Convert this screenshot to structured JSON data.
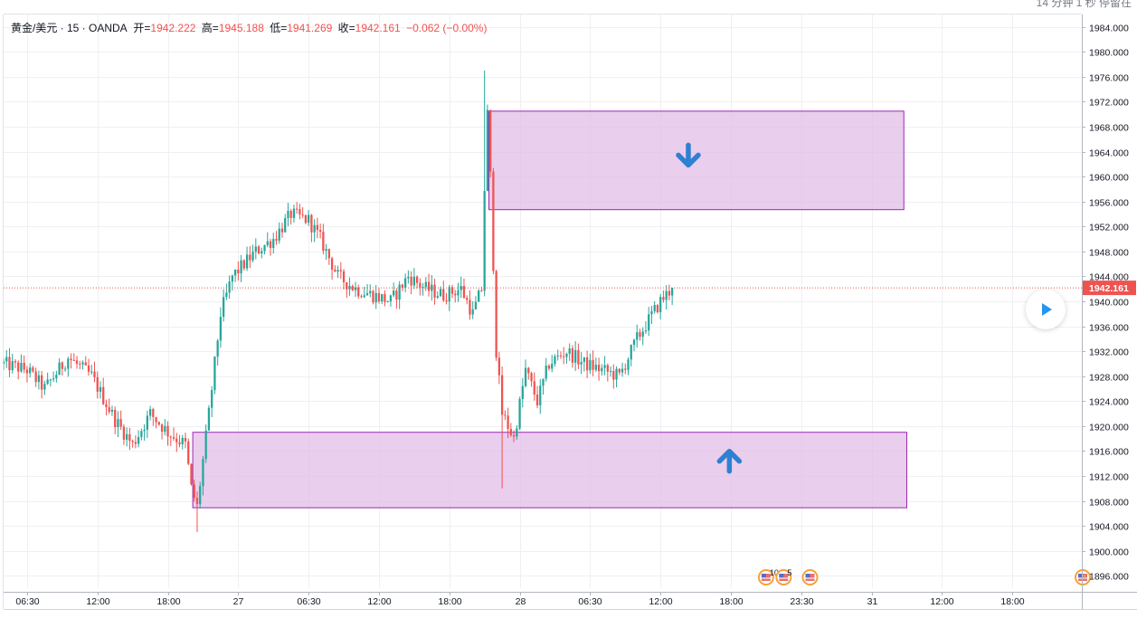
{
  "header": {
    "symbol": "黄金/美元 · 15 · OANDA",
    "open_label": "开=",
    "open_value": "1942.222",
    "high_label": "高=",
    "high_value": "1945.188",
    "low_label": "低=",
    "low_value": "1941.269",
    "close_label": "收=",
    "close_value": "1942.161",
    "change": "−0.062 (−0.00%)"
  },
  "topright_text": "14 分钟 1 秒 停留在",
  "colors": {
    "up": "#26a69a",
    "down": "#ef5350",
    "zone_fill": "#e1bee7",
    "zone_border": "#9c27b0",
    "arrow": "#2f80d1",
    "price_tag": "#ef5350"
  },
  "chart_data": {
    "type": "candlestick",
    "ylim": [
      1894,
      1986
    ],
    "y_ticks": [
      1896,
      1900,
      1904,
      1908,
      1912,
      1916,
      1920,
      1924,
      1928,
      1932,
      1936,
      1940,
      1944,
      1948,
      1952,
      1956,
      1960,
      1964,
      1968,
      1972,
      1976,
      1980,
      1984
    ],
    "y_tick_labels": [
      "1896.000",
      "1900.000",
      "1904.000",
      "1908.000",
      "1912.000",
      "1916.000",
      "1920.000",
      "1924.000",
      "1928.000",
      "1932.000",
      "1936.000",
      "1940.000",
      "1944.000",
      "1948.000",
      "1952.000",
      "1956.000",
      "1960.000",
      "1964.000",
      "1968.000",
      "1972.000",
      "1976.000",
      "1980.000",
      "1984.000"
    ],
    "x_labels": [
      {
        "i": 8,
        "label": "06:30"
      },
      {
        "i": 32,
        "label": "12:00"
      },
      {
        "i": 56,
        "label": "18:00"
      },
      {
        "i": 80,
        "label": "27"
      },
      {
        "i": 104,
        "label": "06:30"
      },
      {
        "i": 128,
        "label": "12:00"
      },
      {
        "i": 152,
        "label": "18:00"
      },
      {
        "i": 176,
        "label": "28"
      },
      {
        "i": 200,
        "label": "06:30"
      },
      {
        "i": 224,
        "label": "12:00"
      },
      {
        "i": 248,
        "label": "18:00"
      },
      {
        "i": 272,
        "label": "23:30"
      },
      {
        "i": 296,
        "label": "31"
      },
      {
        "i": 320,
        "label": "12:00"
      },
      {
        "i": 344,
        "label": "18:00"
      }
    ],
    "bar_count_span": 368,
    "last_price": 1942.161,
    "last_price_label": "1942.161",
    "keypoints": [
      [
        0,
        1930
      ],
      [
        8,
        1929
      ],
      [
        14,
        1926
      ],
      [
        22,
        1931
      ],
      [
        30,
        1928
      ],
      [
        38,
        1921
      ],
      [
        44,
        1917
      ],
      [
        50,
        1922
      ],
      [
        56,
        1919
      ],
      [
        62,
        1917
      ],
      [
        64,
        1910
      ],
      [
        66,
        1907
      ],
      [
        70,
        1922
      ],
      [
        74,
        1938
      ],
      [
        78,
        1944
      ],
      [
        86,
        1948
      ],
      [
        92,
        1950
      ],
      [
        98,
        1954
      ],
      [
        104,
        1953
      ],
      [
        108,
        1950
      ],
      [
        114,
        1944
      ],
      [
        120,
        1942
      ],
      [
        126,
        1941
      ],
      [
        132,
        1940
      ],
      [
        138,
        1944
      ],
      [
        144,
        1942
      ],
      [
        150,
        1941
      ],
      [
        156,
        1942
      ],
      [
        160,
        1938
      ],
      [
        163,
        1942
      ],
      [
        164,
        1958
      ],
      [
        165,
        1970
      ],
      [
        166,
        1960
      ],
      [
        167,
        1946
      ],
      [
        168,
        1932
      ],
      [
        170,
        1922
      ],
      [
        174,
        1918
      ],
      [
        178,
        1929
      ],
      [
        182,
        1924
      ],
      [
        186,
        1930
      ],
      [
        192,
        1932
      ],
      [
        198,
        1930
      ],
      [
        204,
        1929
      ],
      [
        210,
        1928
      ],
      [
        216,
        1934
      ],
      [
        220,
        1937
      ],
      [
        224,
        1940
      ],
      [
        228,
        1942.161
      ]
    ],
    "zones": [
      {
        "name": "resistance",
        "i_start": 165.5,
        "i_end": 307,
        "y_top": 1970.5,
        "y_bottom": 1954.7,
        "arrow": "down",
        "arrow_i": 233.5,
        "arrow_y": 1963.3
      },
      {
        "name": "support",
        "i_start": 64.5,
        "i_end": 308,
        "y_top": 1919.0,
        "y_bottom": 1906.9,
        "arrow": "up",
        "arrow_i": 247.5,
        "arrow_y": 1914.5
      }
    ],
    "event_markers": [
      {
        "i": 260,
        "badge": "10"
      },
      {
        "i": 266,
        "badge": "5"
      },
      {
        "i": 275,
        "badge": ""
      },
      {
        "i": 368,
        "badge": ""
      }
    ]
  }
}
